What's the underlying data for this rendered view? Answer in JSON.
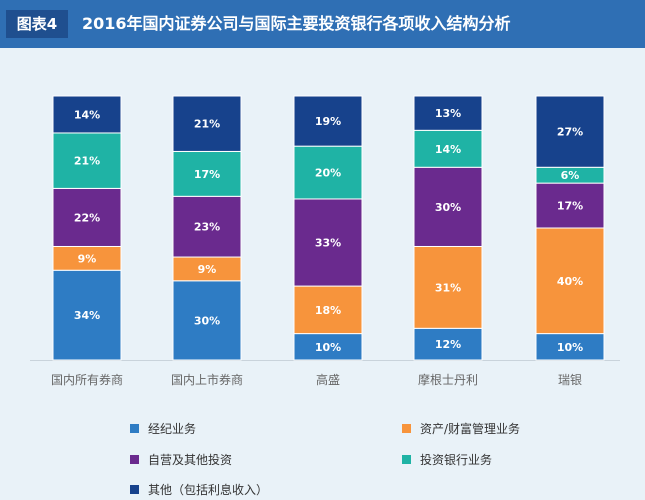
{
  "header": {
    "badge": "图表4",
    "title": "2016年国内证券公司与国际主要投资银行各项收入结构分析"
  },
  "colors": {
    "brokerage": "#2e7cc4",
    "asset_mgmt": "#f7943c",
    "proprietary": "#6a2a8e",
    "ib": "#1fb3a5",
    "other": "#17428c"
  },
  "chart_data": {
    "type": "bar",
    "stacked": true,
    "title": "2016年国内证券公司与国际主要投资银行各项收入结构分析",
    "categories": [
      "国内所有券商",
      "国内上市券商",
      "高盛",
      "摩根士丹利",
      "瑞银"
    ],
    "unit": "%",
    "ylim": [
      0,
      100
    ],
    "series": [
      {
        "key": "brokerage",
        "name": "经纪业务",
        "values": [
          34,
          30,
          10,
          12,
          10
        ]
      },
      {
        "key": "asset_mgmt",
        "name": "资产/财富管理业务",
        "values": [
          9,
          9,
          18,
          31,
          40
        ]
      },
      {
        "key": "proprietary",
        "name": "自营及其他投资",
        "values": [
          22,
          23,
          33,
          30,
          17
        ]
      },
      {
        "key": "ib",
        "name": "投资银行业务",
        "values": [
          21,
          17,
          20,
          14,
          6
        ]
      },
      {
        "key": "other",
        "name": "其他（包括利息收入）",
        "values": [
          14,
          21,
          19,
          13,
          27
        ]
      }
    ],
    "legend_order": [
      "brokerage",
      "asset_mgmt",
      "proprietary",
      "ib",
      "other"
    ]
  }
}
